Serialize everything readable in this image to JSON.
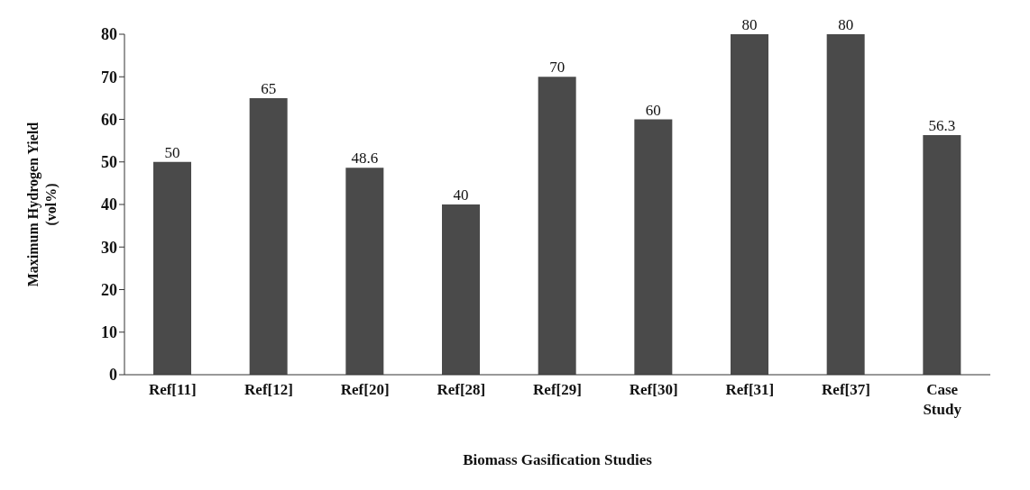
{
  "chart_data": {
    "type": "bar",
    "xlabel": "Biomass Gasification Studies",
    "ylabel": "Maximum Hydrogen Yield (vol%)",
    "categories": [
      "Ref[11]",
      "Ref[12]",
      "Ref[20]",
      "Ref[28]",
      "Ref[29]",
      "Ref[30]",
      "Ref[31]",
      "Ref[37]",
      "Case Study"
    ],
    "values": [
      50,
      65,
      48.6,
      40,
      70,
      60,
      80,
      80,
      56.3
    ],
    "color": "#4a4a4a",
    "ylim": [
      0,
      80
    ],
    "yticks": [
      0,
      10,
      20,
      30,
      40,
      50,
      60,
      70,
      80
    ],
    "data_labels": true,
    "grid": false,
    "legend": false
  }
}
